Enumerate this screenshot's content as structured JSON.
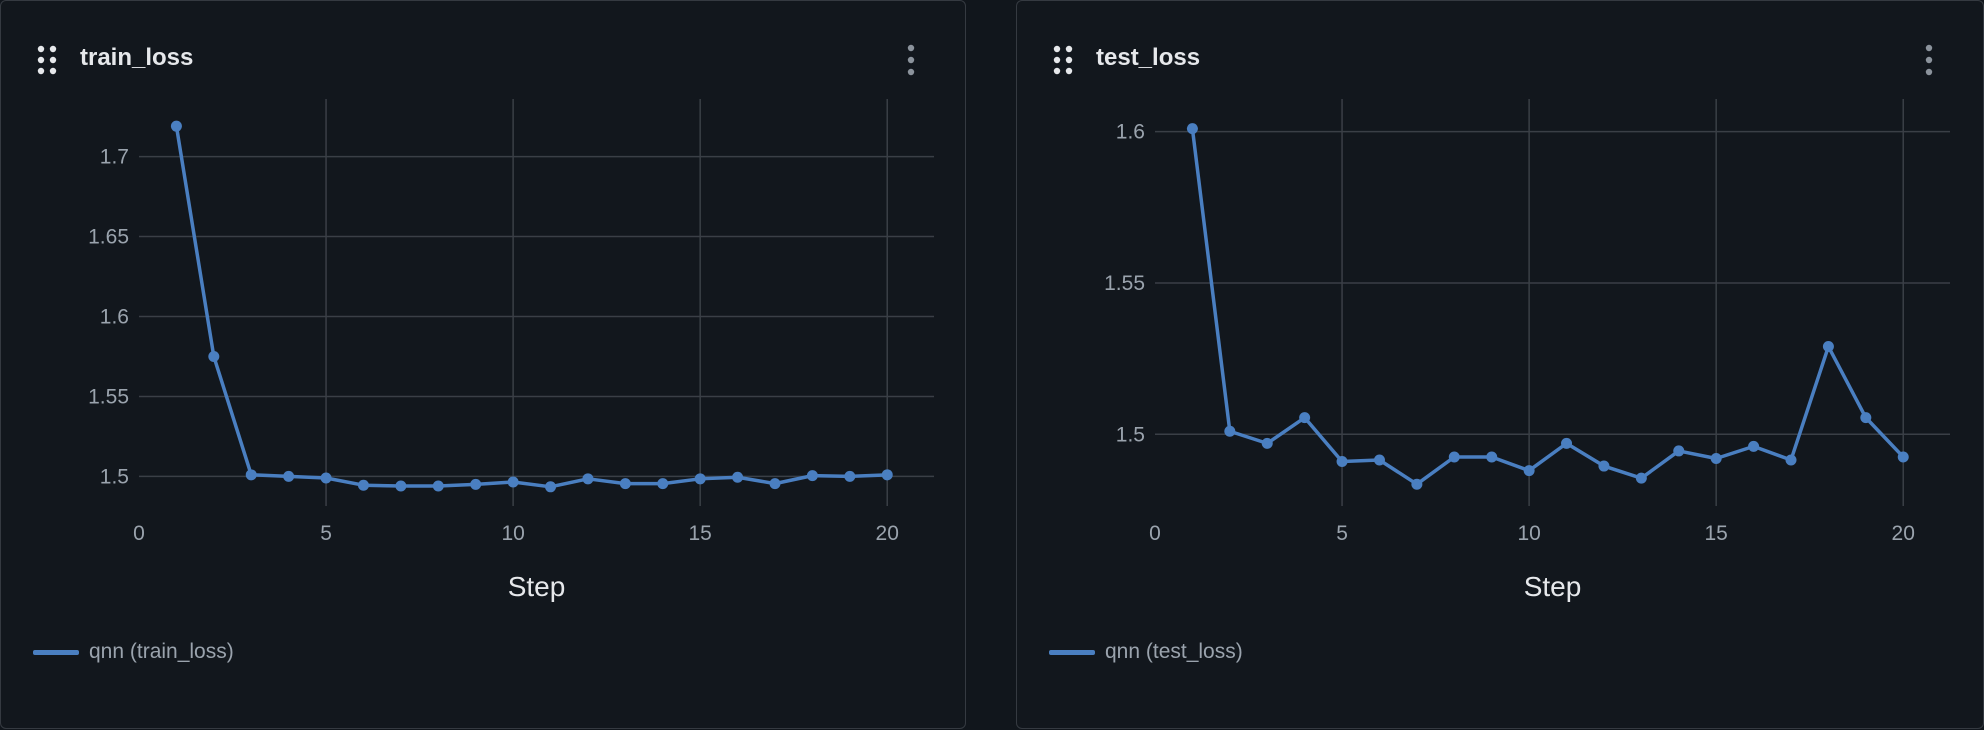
{
  "colors": {
    "background": "#12171d",
    "series": "#4a7fc1",
    "grid": "#3a3f46",
    "tick_text": "#9aa3ad",
    "title_text": "#e6e8eb"
  },
  "panels": [
    {
      "title": "train_loss",
      "drag_icon": "drag-handle-icon",
      "menu_icon": "more-vertical-icon",
      "legend_label": "qnn (train_loss)"
    },
    {
      "title": "test_loss",
      "drag_icon": "drag-handle-icon",
      "menu_icon": "more-vertical-icon",
      "legend_label": "qnn (test_loss)"
    }
  ],
  "chart_data": [
    {
      "type": "line",
      "title": "train_loss",
      "xlabel": "Step",
      "ylabel": "",
      "xlim": [
        0,
        21.25
      ],
      "ylim": [
        1.4815,
        1.736
      ],
      "xticks": [
        0,
        5,
        10,
        15,
        20
      ],
      "yticks": [
        1.5,
        1.55,
        1.6,
        1.65,
        1.7
      ],
      "ytick_labels": [
        "1.5",
        "1.55",
        "1.6",
        "1.65",
        "1.7"
      ],
      "grid": true,
      "legend_position": "bottom-left",
      "series": [
        {
          "name": "qnn (train_loss)",
          "x": [
            1,
            2,
            3,
            4,
            5,
            6,
            7,
            8,
            9,
            10,
            11,
            12,
            13,
            14,
            15,
            16,
            17,
            18,
            19,
            20
          ],
          "y": [
            1.719,
            1.575,
            1.501,
            1.5,
            1.499,
            1.4945,
            1.494,
            1.494,
            1.495,
            1.4965,
            1.4935,
            1.4985,
            1.4955,
            1.4955,
            1.4985,
            1.4995,
            1.4955,
            1.5005,
            1.5,
            1.501
          ]
        }
      ]
    },
    {
      "type": "line",
      "title": "test_loss",
      "xlabel": "Step",
      "ylabel": "",
      "xlim": [
        0,
        21.25
      ],
      "ylim": [
        1.4763,
        1.6108
      ],
      "xticks": [
        0,
        5,
        10,
        15,
        20
      ],
      "yticks": [
        1.5,
        1.55,
        1.6
      ],
      "ytick_labels": [
        "1.5",
        "1.55",
        "1.6"
      ],
      "grid": true,
      "legend_position": "bottom-left",
      "series": [
        {
          "name": "qnn (test_loss)",
          "x": [
            1,
            2,
            3,
            4,
            5,
            6,
            7,
            8,
            9,
            10,
            11,
            12,
            13,
            14,
            15,
            16,
            17,
            18,
            19,
            20
          ],
          "y": [
            1.601,
            1.501,
            1.497,
            1.5055,
            1.491,
            1.4915,
            1.4835,
            1.4925,
            1.4925,
            1.488,
            1.497,
            1.4895,
            1.4855,
            1.4945,
            1.492,
            1.496,
            1.4915,
            1.529,
            1.5055,
            1.4925
          ]
        }
      ]
    }
  ]
}
